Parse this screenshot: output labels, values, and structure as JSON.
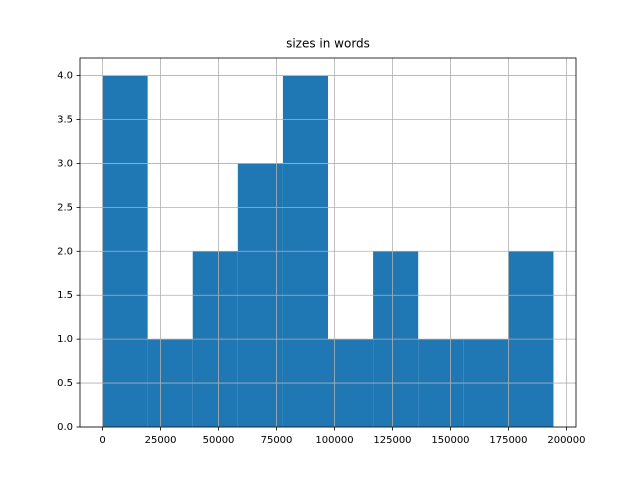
{
  "chart_data": {
    "type": "histogram",
    "title": "sizes in words",
    "bins": [
      0,
      19440,
      38880,
      58320,
      77760,
      97200,
      116640,
      136080,
      155520,
      174960,
      194400
    ],
    "values": [
      4,
      1,
      2,
      3,
      4,
      1,
      2,
      1,
      1,
      2
    ],
    "color": "#1f77b4",
    "xlim": [
      -9720,
      204120
    ],
    "xticks": [
      0,
      25000,
      50000,
      75000,
      100000,
      125000,
      150000,
      175000,
      200000
    ],
    "ylim": [
      0,
      4.2
    ],
    "yticks": [
      {
        "value": 0,
        "label": "0.0"
      },
      {
        "value": 0.5,
        "label": "0.5"
      },
      {
        "value": 1,
        "label": "1.0"
      },
      {
        "value": 1.5,
        "label": "1.5"
      },
      {
        "value": 2,
        "label": "2.0"
      },
      {
        "value": 2.5,
        "label": "2.5"
      },
      {
        "value": 3,
        "label": "3.0"
      },
      {
        "value": 3.5,
        "label": "3.5"
      },
      {
        "value": 4,
        "label": "4.0"
      }
    ],
    "grid": true
  }
}
